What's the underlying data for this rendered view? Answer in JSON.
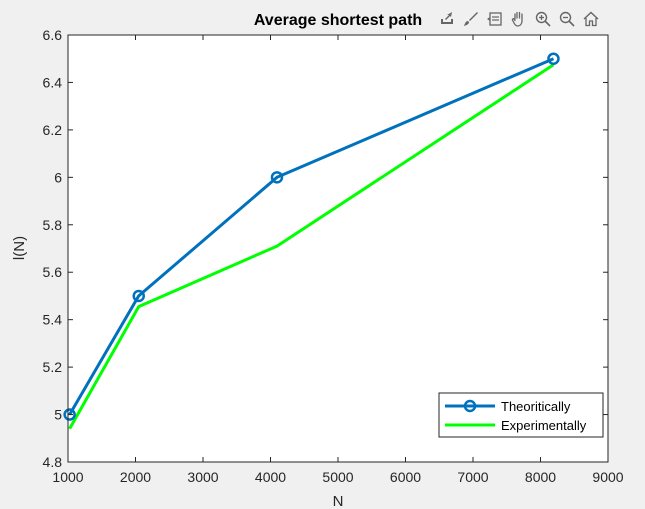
{
  "toolbar": {
    "icons": [
      "export-icon",
      "brush-icon",
      "datatip-icon",
      "pan-icon",
      "zoom-in-icon",
      "zoom-out-icon",
      "home-icon"
    ]
  },
  "chart_data": {
    "type": "line",
    "title": "Average shortest path",
    "xlabel": "N",
    "ylabel": "l(N)",
    "xlim": [
      1000,
      9000
    ],
    "ylim": [
      4.8,
      6.6
    ],
    "xticks": [
      1000,
      2000,
      3000,
      4000,
      5000,
      6000,
      7000,
      8000,
      9000
    ],
    "yticks": [
      4.8,
      5,
      5.2,
      5.4,
      5.6,
      5.8,
      6,
      6.2,
      6.4,
      6.6
    ],
    "grid": false,
    "legend_position": "bottom-right",
    "series": [
      {
        "name": "Theoritically",
        "color": "#0072BD",
        "marker": "circle",
        "x": [
          1024,
          2048,
          4096,
          8192
        ],
        "y": [
          5.0,
          5.5,
          6.0,
          6.5
        ]
      },
      {
        "name": "Experimentally",
        "color": "#00FF00",
        "marker": "none",
        "x": [
          1024,
          2048,
          4096,
          8192
        ],
        "y": [
          4.94,
          5.455,
          5.71,
          6.475
        ]
      }
    ]
  }
}
